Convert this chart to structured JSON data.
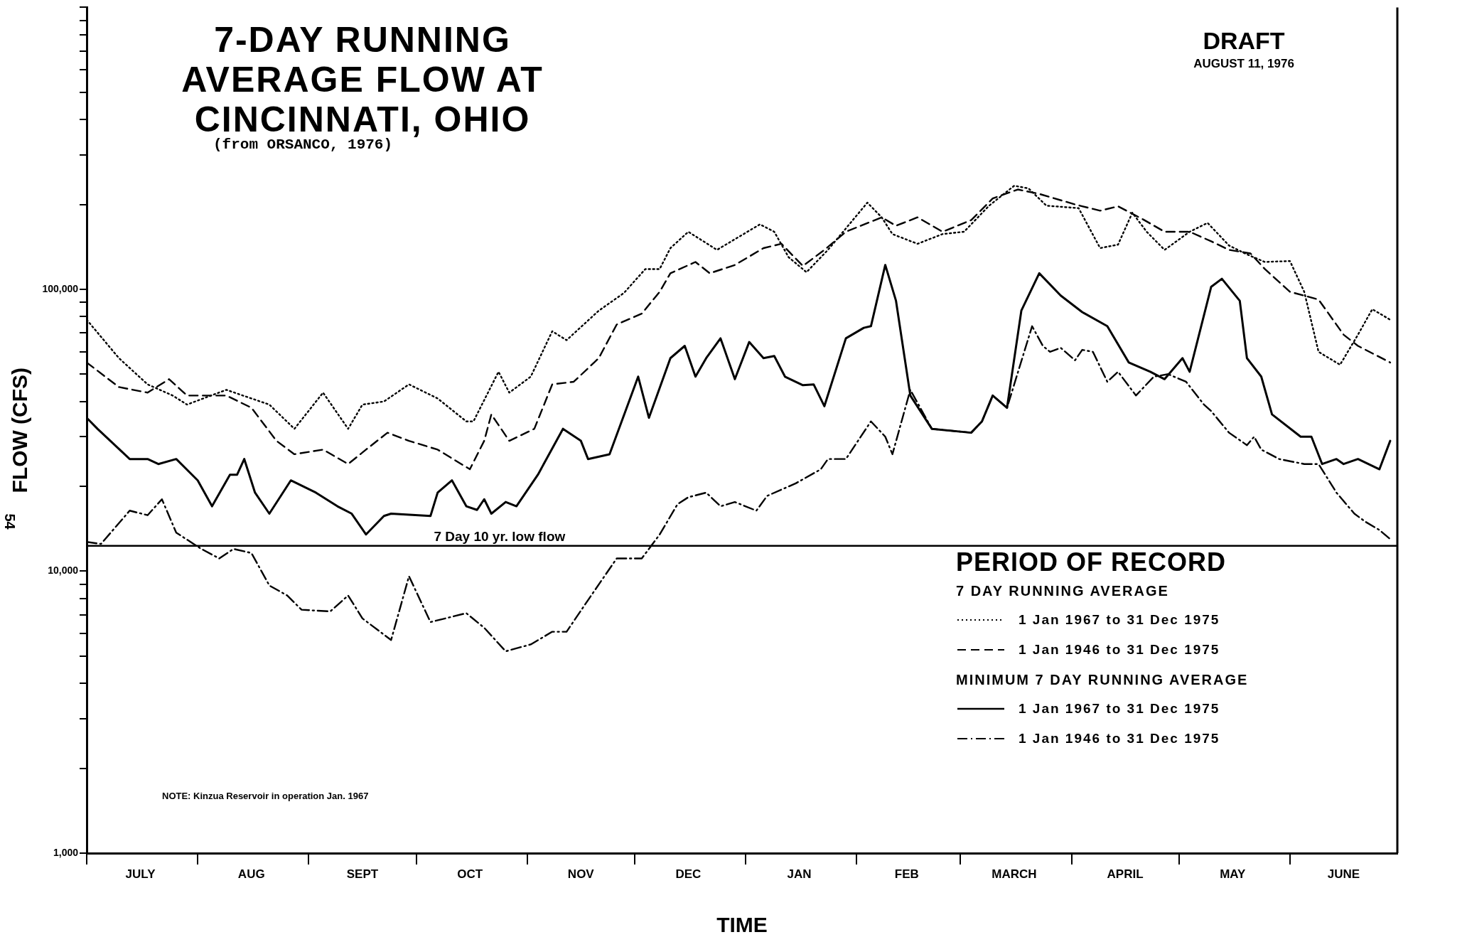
{
  "chart_data": {
    "type": "line",
    "title": "7-DAY RUNNING AVERAGE FLOW AT CINCINNATI, OHIO",
    "subtitle": "(from ORSANCO, 1976)",
    "xlabel": "TIME",
    "ylabel": "FLOW (CFS)",
    "legend_title": "PERIOD OF RECORD",
    "legend": "bottom right",
    "marker": "none",
    "log": "y",
    "xlim": [
      "1975-07-01",
      "1976-07-01"
    ],
    "xticks": [
      {
        "value": "1975-07-01",
        "label": null
      },
      {
        "value": "1975-07-16",
        "label": "JULY"
      },
      {
        "value": "1975-08-01",
        "label": null
      },
      {
        "value": "1975-08-16",
        "label": "AUG"
      },
      {
        "value": "1975-09-01",
        "label": null
      },
      {
        "value": "1975-09-16",
        "label": "SEPT"
      },
      {
        "value": "1975-10-01",
        "label": null
      },
      {
        "value": "1975-10-16",
        "label": "OCT"
      },
      {
        "value": "1975-11-01",
        "label": null
      },
      {
        "value": "1975-11-16",
        "label": "NOV"
      },
      {
        "value": "1975-12-01",
        "label": null
      },
      {
        "value": "1975-12-16",
        "label": "DEC"
      },
      {
        "value": "1976-01-01",
        "label": null
      },
      {
        "value": "1976-01-16",
        "label": "JAN"
      },
      {
        "value": "1976-02-01",
        "label": null
      },
      {
        "value": "1976-02-15",
        "label": "FEB"
      },
      {
        "value": "1976-03-01",
        "label": null
      },
      {
        "value": "1976-03-16",
        "label": "MARCH"
      },
      {
        "value": "1976-04-01",
        "label": null
      },
      {
        "value": "1976-04-16",
        "label": "APRIL"
      },
      {
        "value": "1976-05-01",
        "label": null
      },
      {
        "value": "1976-05-16",
        "label": "MAY"
      },
      {
        "value": "1976-06-01",
        "label": null
      },
      {
        "value": "1976-06-16",
        "label": "JUNE"
      }
    ],
    "ylim": [
      1000,
      1000000
    ],
    "yticks": [
      {
        "value": 1000,
        "label": "1,000"
      },
      {
        "value": 2000,
        "label": null
      },
      {
        "value": 3000,
        "label": null
      },
      {
        "value": 4000,
        "label": null
      },
      {
        "value": 5000,
        "label": null
      },
      {
        "value": 6000,
        "label": null
      },
      {
        "value": 7000,
        "label": null
      },
      {
        "value": 8000,
        "label": null
      },
      {
        "value": 9000,
        "label": null
      },
      {
        "value": 10000,
        "label": "10,000"
      },
      {
        "value": 20000,
        "label": null
      },
      {
        "value": 30000,
        "label": null
      },
      {
        "value": 40000,
        "label": null
      },
      {
        "value": 50000,
        "label": null
      },
      {
        "value": 60000,
        "label": null
      },
      {
        "value": 70000,
        "label": null
      },
      {
        "value": 80000,
        "label": null
      },
      {
        "value": 90000,
        "label": null
      },
      {
        "value": 100000,
        "label": "100,000"
      },
      {
        "value": 200000,
        "label": null
      },
      {
        "value": 300000,
        "label": null
      },
      {
        "value": 400000,
        "label": null
      },
      {
        "value": 500000,
        "label": null
      },
      {
        "value": 600000,
        "label": null
      },
      {
        "value": 700000,
        "label": null
      },
      {
        "value": 800000,
        "label": null
      },
      {
        "value": 900000,
        "label": null
      },
      {
        "value": 1000000,
        "label": null
      }
    ],
    "ref_lines": [
      {
        "axis": "y",
        "value": 12300,
        "label": "7 Day 10 yr. low flow",
        "color": "#000000",
        "line_style": "solid"
      }
    ],
    "annotations": [
      "7 DAY RUNNING AVERAGE",
      "MINIMUM 7 DAY RUNNING AVERAGE",
      "NOTE: Kinzua Reservoir in operation Jan. 1967",
      "DRAFT",
      "AUGUST 11, 1976",
      "54"
    ],
    "series": [
      {
        "name": "1 Jan 1967 to 31 Dec 1975",
        "color": "#000000",
        "line_style": "dotted",
        "x": [
          "1975-07-01",
          "1975-07-10",
          "1975-07-18",
          "1975-07-25",
          "1975-07-29",
          "1975-08-09",
          "1975-08-16",
          "1975-08-21",
          "1975-08-28",
          "1975-09-05",
          "1975-09-12",
          "1975-09-16",
          "1975-09-22",
          "1975-09-29",
          "1975-10-07",
          "1975-10-15",
          "1975-10-17",
          "1975-10-24",
          "1975-10-27",
          "1975-11-02",
          "1975-11-08",
          "1975-11-12",
          "1975-11-21",
          "1975-11-28",
          "1975-12-04",
          "1975-12-08",
          "1975-12-11",
          "1975-12-16",
          "1975-12-24",
          "1976-01-05",
          "1976-01-09",
          "1976-01-13",
          "1976-01-18",
          "1976-01-24",
          "1976-02-04",
          "1976-02-08",
          "1976-02-11",
          "1976-02-18",
          "1976-02-25",
          "1976-03-02",
          "1976-03-09",
          "1976-03-16",
          "1976-03-20",
          "1976-03-25",
          "1976-04-03",
          "1976-04-09",
          "1976-04-14",
          "1976-04-18",
          "1976-04-22",
          "1976-04-27",
          "1976-05-04",
          "1976-05-09",
          "1976-05-15",
          "1976-05-20",
          "1976-05-25",
          "1976-06-01",
          "1976-06-05",
          "1976-06-09",
          "1976-06-15",
          "1976-06-20",
          "1976-06-24",
          "1976-06-29"
        ],
        "values": [
          78000,
          57000,
          46000,
          42000,
          39000,
          44000,
          41000,
          39000,
          32000,
          43000,
          32000,
          39000,
          40000,
          46000,
          41000,
          34000,
          34000,
          51000,
          43000,
          49000,
          71000,
          66000,
          84000,
          97000,
          118000,
          118000,
          140000,
          160000,
          138000,
          170000,
          160000,
          130000,
          115000,
          138000,
          203000,
          180000,
          157000,
          145000,
          157000,
          160000,
          198000,
          233000,
          228000,
          198000,
          194000,
          140000,
          144000,
          187000,
          160000,
          138000,
          160000,
          172000,
          143000,
          133000,
          125000,
          126000,
          98000,
          60000,
          54000,
          69000,
          85000,
          78000
        ]
      },
      {
        "name": "1 Jan 1946 to 31 Dec 1975",
        "color": "#000000",
        "line_style": "dashed",
        "x": [
          "1975-07-01",
          "1975-07-10",
          "1975-07-18",
          "1975-07-24",
          "1975-07-29",
          "1975-08-09",
          "1975-08-16",
          "1975-08-23",
          "1975-08-28",
          "1975-09-05",
          "1975-09-12",
          "1975-09-17",
          "1975-09-23",
          "1975-09-29",
          "1975-10-07",
          "1975-10-16",
          "1975-10-20",
          "1975-10-22",
          "1975-10-27",
          "1975-11-03",
          "1975-11-08",
          "1975-11-14",
          "1975-11-21",
          "1975-11-26",
          "1975-12-03",
          "1975-12-08",
          "1975-12-11",
          "1975-12-18",
          "1975-12-22",
          "1975-12-29",
          "1976-01-06",
          "1976-01-11",
          "1976-01-17",
          "1976-01-23",
          "1976-01-29",
          "1976-02-08",
          "1976-02-12",
          "1976-02-18",
          "1976-02-25",
          "1976-03-04",
          "1976-03-10",
          "1976-03-17",
          "1976-03-23",
          "1976-04-02",
          "1976-04-09",
          "1976-04-14",
          "1976-04-21",
          "1976-04-27",
          "1976-05-04",
          "1976-05-10",
          "1976-05-15",
          "1976-05-21",
          "1976-05-25",
          "1976-06-01",
          "1976-06-09",
          "1976-06-16",
          "1976-06-20",
          "1976-06-29"
        ],
        "values": [
          55000,
          45000,
          43000,
          48000,
          42000,
          42000,
          38000,
          29000,
          26000,
          27000,
          24000,
          27000,
          31000,
          29000,
          27000,
          23000,
          29000,
          36000,
          29000,
          32000,
          46000,
          47000,
          57000,
          75000,
          82000,
          98000,
          114000,
          125000,
          114000,
          122000,
          140000,
          145000,
          121000,
          138000,
          160000,
          180000,
          168000,
          180000,
          160000,
          176000,
          210000,
          226000,
          218000,
          200000,
          190000,
          197000,
          177000,
          160000,
          160000,
          148000,
          138000,
          134000,
          118000,
          98000,
          92000,
          69000,
          63000,
          55000
        ]
      },
      {
        "name": "1 Jan 1967 to 31 Dec 1975",
        "color": "#000000",
        "line_style": "solid",
        "x": [
          "1975-07-01",
          "1975-07-04",
          "1975-07-13",
          "1975-07-18",
          "1975-07-21",
          "1975-07-26",
          "1975-08-01",
          "1975-08-05",
          "1975-08-10",
          "1975-08-12",
          "1975-08-14",
          "1975-08-17",
          "1975-08-21",
          "1975-08-27",
          "1975-09-03",
          "1975-09-09",
          "1975-09-13",
          "1975-09-17",
          "1975-09-22",
          "1975-09-24",
          "1975-10-05",
          "1975-10-07",
          "1975-10-11",
          "1975-10-15",
          "1975-10-18",
          "1975-10-20",
          "1975-10-22",
          "1975-10-26",
          "1975-10-29",
          "1975-11-04",
          "1975-11-11",
          "1975-11-16",
          "1975-11-18",
          "1975-11-24",
          "1975-12-02",
          "1975-12-05",
          "1975-12-11",
          "1975-12-15",
          "1975-12-18",
          "1975-12-21",
          "1975-12-25",
          "1975-12-29",
          "1976-01-02",
          "1976-01-06",
          "1976-01-09",
          "1976-01-12",
          "1976-01-17",
          "1976-01-20",
          "1976-01-23",
          "1976-01-29",
          "1976-02-03",
          "1976-02-05",
          "1976-02-09",
          "1976-02-12",
          "1976-02-16",
          "1976-02-22",
          "1976-03-04",
          "1976-03-07",
          "1976-03-10",
          "1976-03-14",
          "1976-03-18",
          "1976-03-23",
          "1976-03-29",
          "1976-04-04",
          "1976-04-11",
          "1976-04-17",
          "1976-04-23",
          "1976-04-27",
          "1976-05-02",
          "1976-05-04",
          "1976-05-10",
          "1976-05-13",
          "1976-05-18",
          "1976-05-20",
          "1976-05-24",
          "1976-05-27",
          "1976-06-04",
          "1976-06-07",
          "1976-06-10",
          "1976-06-14",
          "1976-06-16",
          "1976-06-20",
          "1976-06-26",
          "1976-06-29"
        ],
        "values": [
          35000,
          32000,
          25000,
          25000,
          24000,
          25000,
          21000,
          17000,
          22000,
          22000,
          25000,
          19000,
          16000,
          21000,
          19000,
          17000,
          16000,
          13500,
          15700,
          16000,
          15700,
          19000,
          21000,
          17000,
          16500,
          18000,
          16000,
          17600,
          17000,
          22000,
          32000,
          29000,
          25000,
          26000,
          49000,
          35000,
          57000,
          63000,
          49000,
          57000,
          67000,
          48000,
          65000,
          57000,
          58000,
          49000,
          45700,
          46000,
          38500,
          67000,
          73000,
          74000,
          122000,
          91000,
          42000,
          32000,
          31000,
          34000,
          42000,
          38000,
          84000,
          114000,
          95000,
          83000,
          74000,
          55000,
          51000,
          48000,
          57000,
          51000,
          102000,
          109000,
          91000,
          57000,
          49000,
          36000,
          30000,
          30000,
          24000,
          25000,
          24000,
          25000,
          23000,
          29000
        ]
      },
      {
        "name": "1 Jan 1946 to 31 Dec 1975",
        "color": "#000000",
        "line_style": "dashdot",
        "x": [
          "1975-07-01",
          "1975-07-05",
          "1975-07-13",
          "1975-07-18",
          "1975-07-22",
          "1975-07-26",
          "1975-08-02",
          "1975-08-07",
          "1975-08-11",
          "1975-08-16",
          "1975-08-21",
          "1975-08-26",
          "1975-08-30",
          "1975-09-07",
          "1975-09-12",
          "1975-09-16",
          "1975-09-24",
          "1975-09-29",
          "1975-10-05",
          "1975-10-15",
          "1975-10-20",
          "1975-10-26",
          "1975-11-02",
          "1975-11-08",
          "1975-11-12",
          "1975-11-18",
          "1975-11-26",
          "1975-12-03",
          "1975-12-08",
          "1975-12-13",
          "1975-12-16",
          "1975-12-21",
          "1975-12-25",
          "1975-12-29",
          "1976-01-04",
          "1976-01-07",
          "1976-01-15",
          "1976-01-22",
          "1976-01-24",
          "1976-01-29",
          "1976-02-05",
          "1976-02-09",
          "1976-02-11",
          "1976-02-16",
          "1976-02-22",
          "1976-03-04",
          "1976-03-07",
          "1976-03-10",
          "1976-03-14",
          "1976-03-21",
          "1976-03-24",
          "1976-03-26",
          "1976-03-29",
          "1976-04-02",
          "1976-04-04",
          "1976-04-07",
          "1976-04-11",
          "1976-04-14",
          "1976-04-19",
          "1976-04-24",
          "1976-04-28",
          "1976-05-03",
          "1976-05-08",
          "1976-05-10",
          "1976-05-15",
          "1976-05-20",
          "1976-05-22",
          "1976-05-24",
          "1976-05-29",
          "1976-06-05",
          "1976-06-09",
          "1976-06-14",
          "1976-06-19",
          "1976-06-22",
          "1976-06-26",
          "1976-06-29"
        ],
        "values": [
          12700,
          12500,
          16400,
          15800,
          18000,
          13700,
          12000,
          11100,
          12000,
          11600,
          8900,
          8200,
          7300,
          7200,
          8200,
          6800,
          5700,
          9600,
          6600,
          7100,
          6300,
          5200,
          5500,
          6100,
          6100,
          7900,
          11100,
          11100,
          13500,
          17300,
          18300,
          19000,
          17000,
          17600,
          16400,
          18500,
          20500,
          23000,
          25000,
          25000,
          34000,
          30000,
          26000,
          44000,
          32000,
          31000,
          34000,
          42000,
          38000,
          74000,
          63000,
          60000,
          62000,
          56000,
          61000,
          60000,
          47000,
          51000,
          42000,
          49000,
          50000,
          47000,
          39000,
          37000,
          31000,
          28000,
          30000,
          27000,
          25000,
          24000,
          24000,
          19000,
          16000,
          15000,
          14000,
          13000
        ]
      }
    ]
  }
}
